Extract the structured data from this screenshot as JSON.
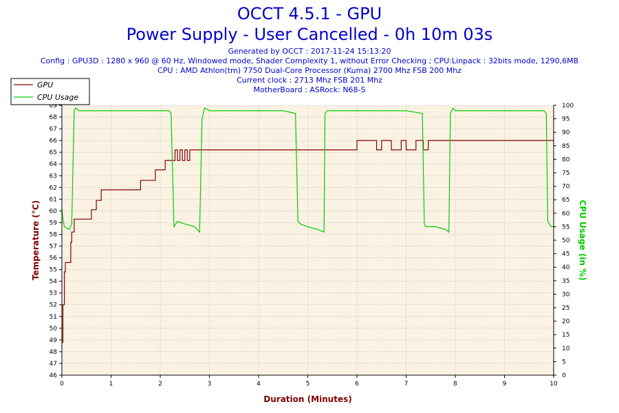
{
  "title": "OCCT 4.5.1 - GPU",
  "subtitle": "Power Supply - User Cancelled - 0h 10m 03s",
  "info_lines": [
    "Generated by OCCT : 2017-11-24 15:13:20",
    "Config : GPU3D : 1280 x 960 @ 60 Hz, Windowed mode, Shader Complexity 1, without Error Checking ; CPU:Linpack : 32bits mode, 1290,6MB",
    "CPU : AMD Athlon(tm) 7750 Dual-Core Processor (Kuma) 2700 Mhz FSB 200 Mhz",
    "Current clock : 2713 Mhz FSB 201 Mhz",
    "MotherBoard : ASRock: N68-S"
  ],
  "colors": {
    "gpu": "#800000",
    "cpu": "#00cc00",
    "plot_bg": "#fbf2e3",
    "grid": "#9a9a9a",
    "title": "#0000cc"
  },
  "chart_data": {
    "type": "line",
    "xlabel": "Duration (Minutes)",
    "ylabel_left": "Temperature (°C)",
    "ylabel_right": "CPU Usage (in %)",
    "xlim": [
      0,
      10
    ],
    "ylim_left": [
      46,
      69
    ],
    "ylim_right": [
      0,
      100
    ],
    "x_ticks": [
      "0",
      "1",
      "2",
      "3",
      "4",
      "5",
      "6",
      "7",
      "8",
      "9",
      "10"
    ],
    "y_left_ticks": [
      "46",
      "47",
      "48",
      "49",
      "50",
      "51",
      "52",
      "53",
      "54",
      "55",
      "56",
      "57",
      "58",
      "59",
      "60",
      "61",
      "62",
      "63",
      "64",
      "65",
      "66",
      "67",
      "68",
      "69"
    ],
    "y_right_ticks": [
      "0",
      "5",
      "10",
      "15",
      "20",
      "25",
      "30",
      "35",
      "40",
      "45",
      "50",
      "55",
      "60",
      "65",
      "70",
      "75",
      "80",
      "85",
      "90",
      "95",
      "100"
    ],
    "grid": true,
    "legend_position": "top-left",
    "series": [
      {
        "name": "GPU",
        "axis": "left",
        "x": [
          0,
          0.02,
          0.05,
          0.07,
          0.1,
          0.18,
          0.2,
          0.25,
          0.3,
          0.55,
          0.6,
          0.65,
          0.7,
          0.75,
          0.8,
          0.85,
          1.0,
          1.3,
          1.6,
          1.85,
          1.9,
          2.0,
          2.1,
          2.2,
          2.25,
          2.3,
          2.35,
          2.4,
          2.45,
          2.5,
          2.55,
          2.6,
          2.65,
          2.7,
          2.75,
          2.8,
          2.9,
          3.0,
          3.5,
          4.0,
          4.5,
          5.0,
          5.5,
          5.95,
          6.0,
          6.4,
          6.5,
          6.7,
          6.9,
          7.0,
          7.2,
          7.35,
          7.45,
          7.6,
          7.8,
          8.0,
          8.2,
          8.3,
          8.5,
          8.8,
          9.2,
          9.4,
          9.6,
          10.0
        ],
        "y": [
          48.8,
          52.0,
          54.8,
          55.6,
          55.6,
          57.3,
          58.2,
          59.3,
          59.3,
          59.3,
          60.1,
          60.1,
          60.9,
          60.9,
          61.8,
          61.8,
          61.8,
          61.8,
          62.6,
          62.6,
          63.5,
          63.5,
          64.3,
          64.3,
          64.3,
          65.2,
          64.3,
          65.2,
          64.3,
          65.2,
          64.3,
          65.2,
          65.2,
          65.2,
          65.2,
          65.2,
          65.2,
          65.2,
          65.2,
          65.2,
          65.2,
          65.2,
          65.2,
          65.2,
          66.0,
          65.2,
          66.0,
          65.2,
          66.0,
          65.2,
          66.0,
          65.2,
          66.0,
          66.0,
          66.0,
          66.0,
          66.0,
          66.0,
          66.0,
          66.0,
          66.0,
          66.0,
          66.0,
          66.0
        ]
      },
      {
        "name": "CPU Usage",
        "axis": "right",
        "x": [
          0,
          0.02,
          0.05,
          0.15,
          0.2,
          0.25,
          0.28,
          0.35,
          0.6,
          1.0,
          1.5,
          2.0,
          2.18,
          2.22,
          2.28,
          2.35,
          2.5,
          2.7,
          2.8,
          2.85,
          2.9,
          3.0,
          3.5,
          4.0,
          4.5,
          4.75,
          4.8,
          4.85,
          5.0,
          5.2,
          5.33,
          5.35,
          5.4,
          5.5,
          6.0,
          6.5,
          7.0,
          7.33,
          7.37,
          7.4,
          7.6,
          7.8,
          7.87,
          7.9,
          7.95,
          8.0,
          8.5,
          9.0,
          9.5,
          9.8,
          9.85,
          9.88,
          9.95,
          10.0
        ],
        "y": [
          62,
          58,
          55,
          54,
          56,
          98,
          99,
          98,
          98,
          98,
          98,
          98,
          98,
          97,
          55,
          57,
          56,
          55,
          53,
          95,
          99,
          98,
          98,
          98,
          98,
          97,
          57,
          56,
          55,
          54,
          53,
          97,
          98,
          98,
          98,
          98,
          98,
          97,
          56,
          55,
          55,
          54,
          53,
          97,
          99,
          98,
          98,
          98,
          98,
          98,
          97,
          57,
          55,
          55
        ]
      }
    ]
  }
}
